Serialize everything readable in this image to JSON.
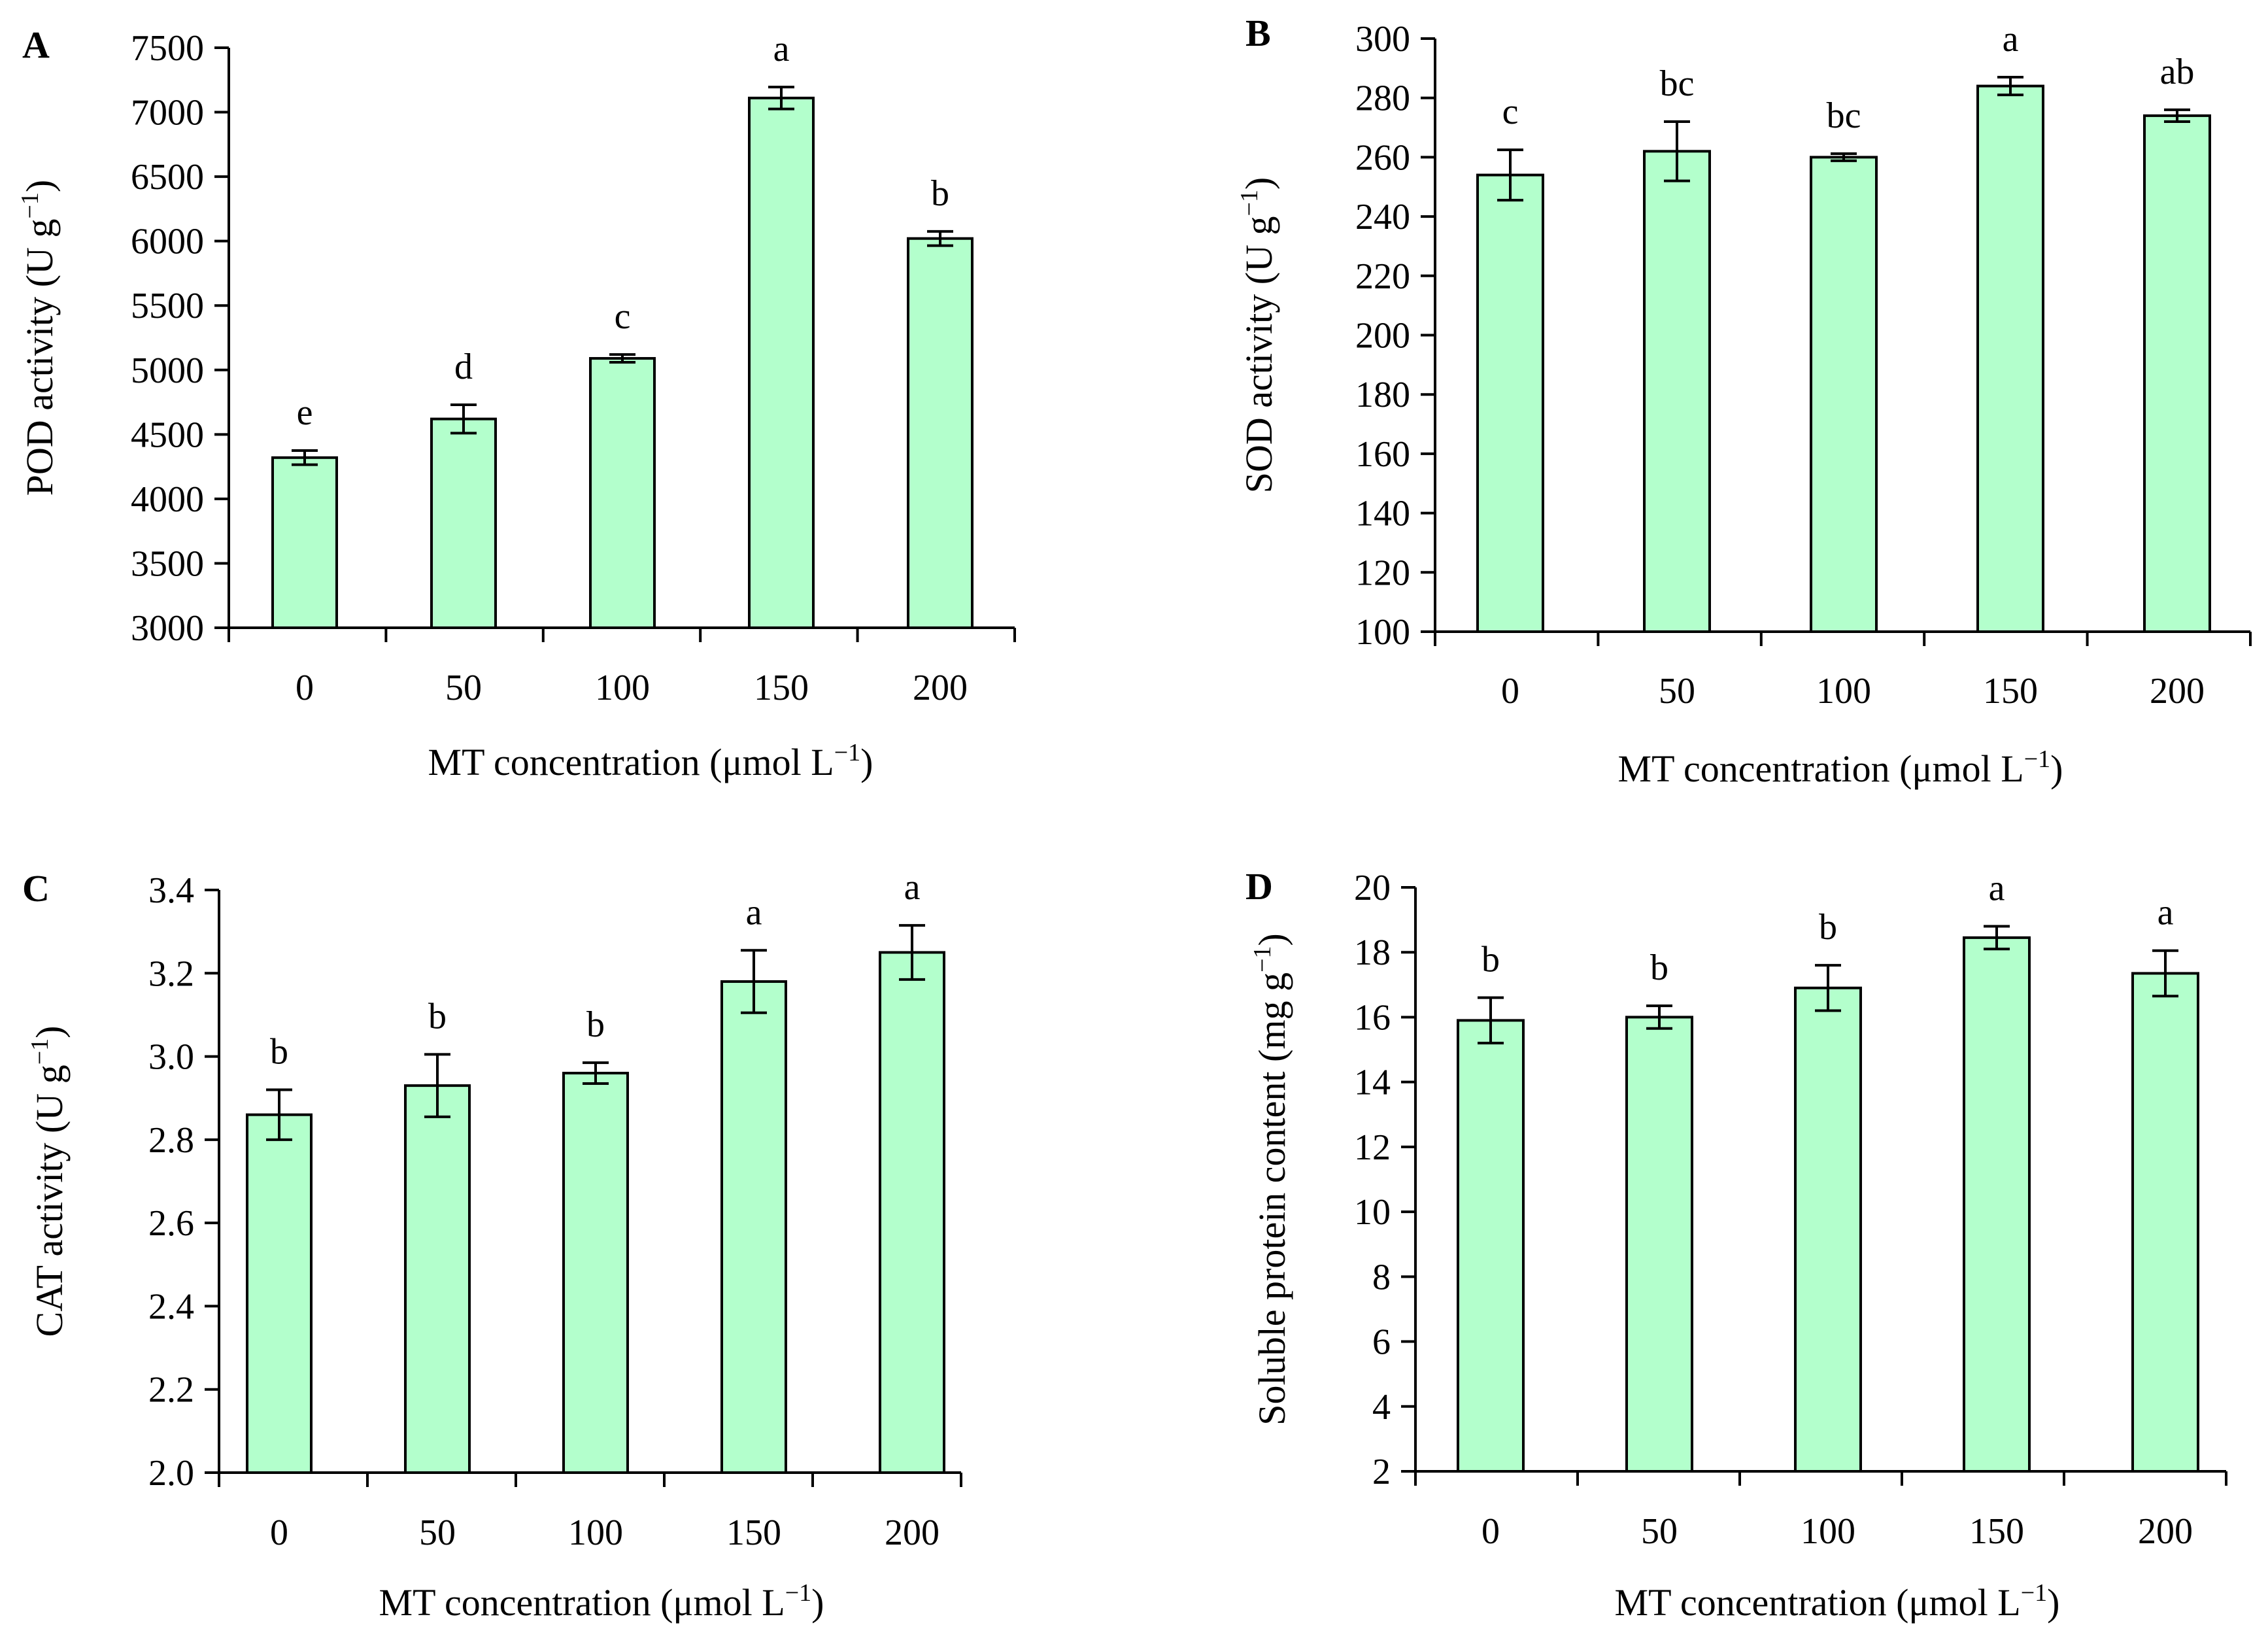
{
  "style": {
    "bar_fill": "#b3ffcc",
    "line_color": "#000000"
  },
  "chart_data": [
    {
      "type": "bar",
      "panel": "A",
      "categories": [
        "0",
        "50",
        "100",
        "150",
        "200"
      ],
      "values": [
        4320,
        4620,
        5090,
        7110,
        6020
      ],
      "errors": [
        55,
        110,
        30,
        85,
        55
      ],
      "significance": [
        "e",
        "d",
        "c",
        "a",
        "b"
      ],
      "xlabel": "MT concentration (μmol L",
      "xlabel_sup": "−1",
      "xlabel_end": ")",
      "ylabel": "POD activity (U g",
      "ylabel_sup": "−1",
      "ylabel_end": ")",
      "ylim": [
        3000,
        7500
      ],
      "yticks": [
        3000,
        3500,
        4000,
        4500,
        5000,
        5500,
        6000,
        6500,
        7000,
        7500
      ],
      "ytick_labels": [
        "3000",
        "3500",
        "4000",
        "4500",
        "5000",
        "5500",
        "6000",
        "6500",
        "7000",
        "7500"
      ]
    },
    {
      "type": "bar",
      "panel": "B",
      "categories": [
        "0",
        "50",
        "100",
        "150",
        "200"
      ],
      "values": [
        254,
        262,
        260,
        284,
        274
      ],
      "errors": [
        8.5,
        10,
        1.2,
        3,
        2
      ],
      "significance": [
        "c",
        "bc",
        "bc",
        "a",
        "ab"
      ],
      "xlabel": "MT concentration (μmol L",
      "xlabel_sup": "−1",
      "xlabel_end": ")",
      "ylabel": "SOD activity (U g",
      "ylabel_sup": "−1",
      "ylabel_end": ")",
      "ylim": [
        100,
        300
      ],
      "yticks": [
        100,
        120,
        140,
        160,
        180,
        200,
        220,
        240,
        260,
        280,
        300
      ],
      "ytick_labels": [
        "100",
        "120",
        "140",
        "160",
        "180",
        "200",
        "220",
        "240",
        "260",
        "280",
        "300"
      ]
    },
    {
      "type": "bar",
      "panel": "C",
      "categories": [
        "0",
        "50",
        "100",
        "150",
        "200"
      ],
      "values": [
        2.86,
        2.93,
        2.96,
        3.18,
        3.25
      ],
      "errors": [
        0.06,
        0.075,
        0.025,
        0.075,
        0.065
      ],
      "significance": [
        "b",
        "b",
        "b",
        "a",
        "a"
      ],
      "xlabel": "MT concentration (μmol L",
      "xlabel_sup": "−1",
      "xlabel_end": ")",
      "ylabel": "CAT activity (U g",
      "ylabel_sup": "−1",
      "ylabel_end": ")",
      "ylim": [
        2.0,
        3.4
      ],
      "yticks": [
        2.0,
        2.2,
        2.4,
        2.6,
        2.8,
        3.0,
        3.2,
        3.4
      ],
      "ytick_labels": [
        "2.0",
        "2.2",
        "2.4",
        "2.6",
        "2.8",
        "3.0",
        "3.2",
        "3.4"
      ]
    },
    {
      "type": "bar",
      "panel": "D",
      "categories": [
        "0",
        "50",
        "100",
        "150",
        "200"
      ],
      "values": [
        15.9,
        16.0,
        16.9,
        18.45,
        17.35
      ],
      "errors": [
        0.7,
        0.35,
        0.7,
        0.35,
        0.7
      ],
      "significance": [
        "b",
        "b",
        "b",
        "a",
        "a"
      ],
      "xlabel": "MT concentration (μmol L",
      "xlabel_sup": "−1",
      "xlabel_end": ")",
      "ylabel": "Soluble protein content (mg g",
      "ylabel_sup": "−1",
      "ylabel_end": ")",
      "ylim": [
        2,
        20
      ],
      "yticks": [
        2,
        4,
        6,
        8,
        10,
        12,
        14,
        16,
        18,
        20
      ],
      "ytick_labels": [
        "2",
        "4",
        "6",
        "8",
        "10",
        "12",
        "14",
        "16",
        "18",
        "20"
      ]
    }
  ]
}
